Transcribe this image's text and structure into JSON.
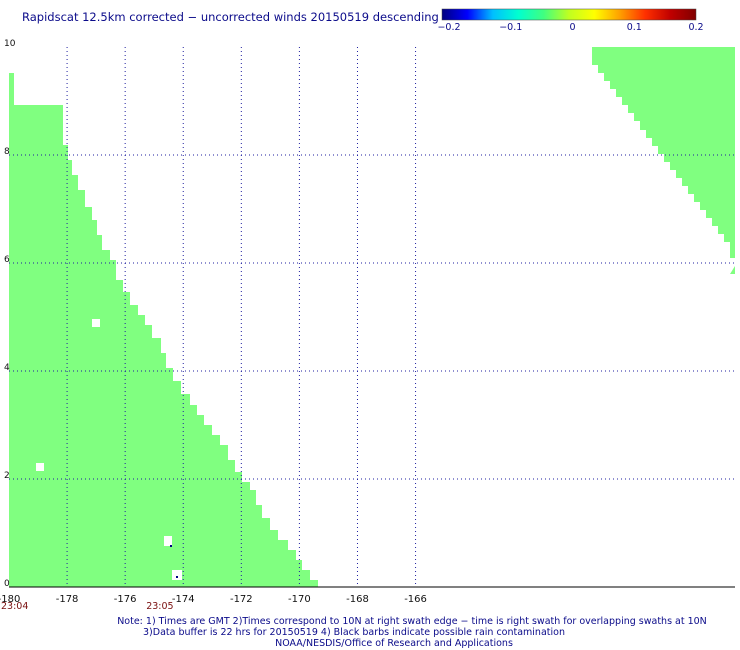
{
  "title": "Rapidscat 12.5km corrected − uncorrected winds 20150519 descending",
  "colorbar": {
    "min": -0.2,
    "max": 0.2,
    "labels": [
      "−0.2",
      "−0.1",
      "0",
      "0.1",
      "0.2"
    ],
    "stops": [
      "#000080",
      "#0000ff",
      "#00bfff",
      "#00ffd0",
      "#40ff80",
      "#c0ff20",
      "#ffff00",
      "#ffa000",
      "#ff3000",
      "#c00000",
      "#800000"
    ]
  },
  "map": {
    "lon_range": [
      -180,
      -155
    ],
    "lat_range": [
      0,
      10
    ],
    "x_ticks": [
      "-180",
      "-178",
      "-176",
      "-174",
      "-172",
      "-170",
      "-168",
      "-166"
    ],
    "y_ticks": [
      "0",
      "2",
      "4",
      "6",
      "8",
      "10"
    ],
    "swath_color": "#80ff80",
    "grid_color": "#1f1fa0"
  },
  "times": [
    {
      "label": "23:04",
      "lon": -180
    },
    {
      "label": "23:05",
      "lon": -175
    }
  ],
  "notes": {
    "line1": "Note: 1) Times are GMT 2)Times correspond to 10N at right swath edge − time is right swath for overlapping swaths at 10N",
    "line2": "3)Data buffer is 22 hrs for 20150519 4) Black barbs indicate possible rain contamination",
    "line3": "NOAA/NESDIS/Office of Research and Applications"
  }
}
